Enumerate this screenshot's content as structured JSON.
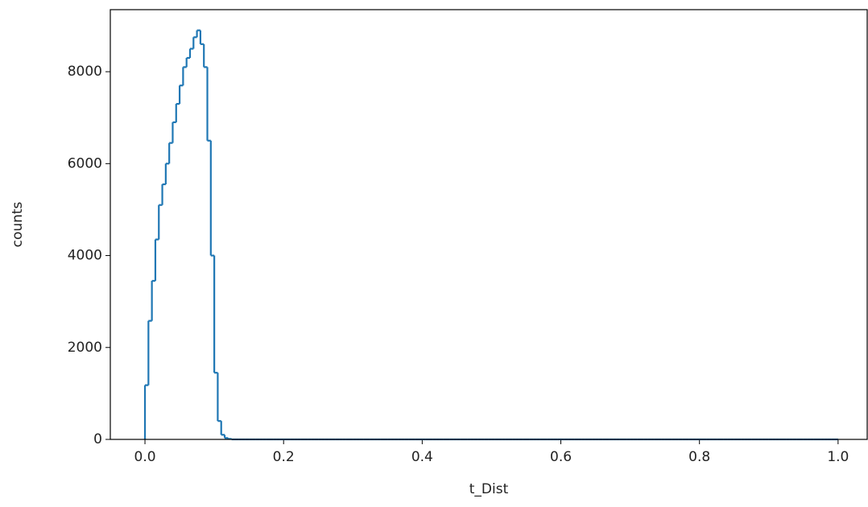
{
  "chart_data": {
    "type": "histogram",
    "histtype": "step",
    "color": "#1f77b4",
    "xlabel": "t_Dist",
    "ylabel": "counts",
    "bins": [
      0,
      0.005,
      0.01,
      0.015,
      0.02,
      0.025,
      0.03,
      0.035,
      0.04,
      0.045,
      0.05,
      0.055,
      0.06,
      0.065,
      0.07,
      0.075,
      0.08,
      0.085,
      0.09,
      0.095,
      0.1,
      0.105,
      0.11,
      0.115,
      0.12,
      0.125,
      0.13,
      0.135,
      0.14,
      0.145,
      0.15,
      0.155,
      0.16,
      0.165,
      0.17,
      0.175,
      0.18,
      0.185,
      0.19,
      0.195,
      0.2,
      0.205,
      0.21,
      0.215,
      0.22,
      0.225,
      0.23,
      0.235,
      0.24,
      0.245,
      0.25,
      0.255,
      0.26,
      0.265,
      0.27,
      0.275,
      0.28,
      0.285,
      0.29,
      0.295,
      0.3,
      0.305,
      0.31,
      0.315,
      0.32,
      0.325,
      0.33,
      0.335,
      0.34,
      0.345,
      0.35,
      0.355,
      0.36,
      0.365,
      0.37,
      0.375,
      0.38,
      0.385,
      0.39,
      0.395,
      0.4,
      0.405,
      0.41,
      0.415,
      0.42,
      0.425,
      0.43,
      0.435,
      0.44,
      0.445,
      0.45,
      0.455,
      0.46,
      0.465,
      0.47,
      0.475,
      0.48,
      0.485,
      0.49,
      0.495,
      0.5,
      0.505,
      0.51,
      0.515,
      0.52,
      0.525,
      0.53,
      0.535,
      0.54,
      0.545,
      0.55,
      0.555,
      0.56,
      0.565,
      0.57,
      0.575,
      0.58,
      0.585,
      0.59,
      0.595,
      0.6,
      0.605,
      0.61,
      0.615,
      0.62,
      0.625,
      0.63,
      0.635,
      0.64,
      0.645,
      0.65,
      0.655,
      0.66,
      0.665,
      0.67,
      0.675,
      0.68,
      0.685,
      0.69,
      0.695,
      0.7,
      0.705,
      0.71,
      0.715,
      0.72,
      0.725,
      0.73,
      0.735,
      0.74,
      0.745,
      0.75,
      0.755,
      0.76,
      0.765,
      0.77,
      0.775,
      0.78,
      0.785,
      0.79,
      0.795,
      0.8,
      0.805,
      0.81,
      0.815,
      0.82,
      0.825,
      0.83,
      0.835,
      0.84,
      0.845,
      0.85,
      0.855,
      0.86,
      0.865,
      0.87,
      0.875,
      0.88,
      0.885,
      0.89,
      0.895,
      0.9,
      0.905,
      0.91,
      0.915,
      0.92,
      0.925,
      0.93,
      0.935,
      0.94,
      0.945,
      0.95,
      0.955,
      0.96,
      0.965,
      0.97,
      0.975,
      0.98,
      0.985,
      0.99,
      0.995,
      1
    ],
    "counts": [
      1180,
      2580,
      3450,
      4350,
      5100,
      5550,
      6000,
      6450,
      6900,
      7300,
      7700,
      8100,
      8300,
      8500,
      8750,
      8900,
      8600,
      8100,
      6500,
      4000,
      1450,
      400,
      100,
      30,
      10,
      0,
      0,
      0,
      0,
      0,
      0,
      0,
      0,
      0,
      0,
      0,
      0,
      0,
      0,
      0,
      0,
      0,
      0,
      0,
      0,
      0,
      0,
      0,
      0,
      0,
      0,
      0,
      0,
      0,
      0,
      0,
      0,
      0,
      0,
      0,
      0,
      0,
      0,
      0,
      0,
      0,
      0,
      0,
      0,
      0,
      0,
      0,
      0,
      0,
      0,
      0,
      0,
      0,
      0,
      0,
      0,
      0,
      0,
      0,
      0,
      0,
      0,
      0,
      0,
      0,
      0,
      0,
      0,
      0,
      0,
      0,
      0,
      0,
      0,
      0,
      0,
      0,
      0,
      0,
      0,
      0,
      0,
      0,
      0,
      0,
      0,
      0,
      0,
      0,
      0,
      0,
      0,
      0,
      0,
      0,
      0,
      0,
      0,
      0,
      0,
      0,
      0,
      0,
      0,
      0,
      0,
      0,
      0,
      0,
      0,
      0,
      0,
      0,
      0,
      0,
      0,
      0,
      0,
      0,
      0,
      0,
      0,
      0,
      0,
      0,
      0,
      0,
      0,
      0,
      0,
      0,
      0,
      0,
      0,
      0,
      0,
      0,
      0,
      0,
      0,
      0,
      0,
      0,
      0,
      0,
      0,
      0,
      0,
      0,
      0,
      0,
      0,
      0,
      0,
      0,
      0,
      0,
      0,
      0,
      0,
      0,
      0,
      0,
      0,
      0,
      0,
      0,
      0,
      0,
      0,
      0,
      0,
      0,
      0,
      0
    ],
    "xlim": [
      -0.05,
      1.042
    ],
    "ylim": [
      0,
      9350
    ],
    "xticks": [
      {
        "value": 0,
        "label": "0.0"
      },
      {
        "value": 0.2,
        "label": "0.2"
      },
      {
        "value": 0.4,
        "label": "0.4"
      },
      {
        "value": 0.6,
        "label": "0.6"
      },
      {
        "value": 0.8,
        "label": "0.8"
      },
      {
        "value": 1,
        "label": "1.0"
      }
    ],
    "yticks": [
      0,
      2000,
      4000,
      6000,
      8000
    ]
  }
}
